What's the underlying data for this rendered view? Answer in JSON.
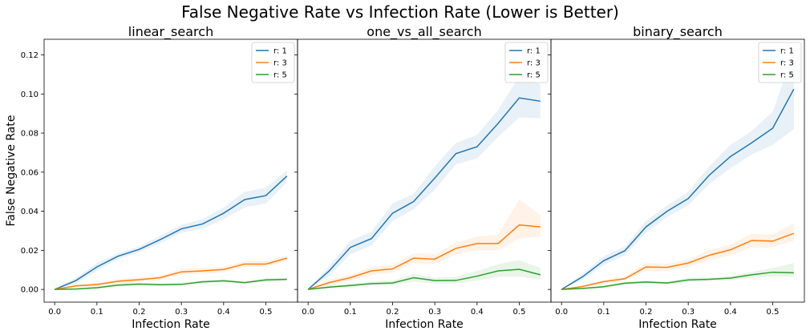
{
  "figure": {
    "title": "False Negative Rate vs Infection Rate (Lower is Better)"
  },
  "chart_data": {
    "type": "line",
    "x": [
      0.0,
      0.05,
      0.1,
      0.15,
      0.2,
      0.25,
      0.3,
      0.35,
      0.4,
      0.45,
      0.5,
      0.55
    ],
    "xlabel": "Infection Rate",
    "ylabel": "False Negative Rate",
    "xlim": [
      -0.025,
      0.575
    ],
    "ylim": [
      -0.0065,
      0.128
    ],
    "xticks": [
      "0.0",
      "0.1",
      "0.2",
      "0.3",
      "0.4",
      "0.5"
    ],
    "yticks": [
      "0.00",
      "0.02",
      "0.04",
      "0.06",
      "0.08",
      "0.10",
      "0.12"
    ],
    "grid": false,
    "legend_placement": "top-right",
    "series_styles": [
      {
        "name": "r: 1",
        "color": "#1f77b4"
      },
      {
        "name": "r: 3",
        "color": "#ff7f0e"
      },
      {
        "name": "r: 5",
        "color": "#2ca02c"
      }
    ],
    "panels": [
      {
        "title": "linear_search",
        "series": [
          {
            "name": "r: 1",
            "values": [
              0.0,
              0.0045,
              0.0115,
              0.017,
              0.0205,
              0.0255,
              0.031,
              0.0335,
              0.039,
              0.046,
              0.048,
              0.058
            ],
            "lower": [
              0.0,
              0.003,
              0.0095,
              0.0155,
              0.019,
              0.0235,
              0.029,
              0.031,
              0.036,
              0.042,
              0.044,
              0.055
            ],
            "upper": [
              0.0,
              0.006,
              0.0135,
              0.0185,
              0.022,
              0.0275,
              0.033,
              0.036,
              0.042,
              0.05,
              0.052,
              0.061
            ]
          },
          {
            "name": "r: 3",
            "values": [
              0.0,
              0.0018,
              0.0025,
              0.0042,
              0.005,
              0.006,
              0.009,
              0.0095,
              0.0102,
              0.013,
              0.013,
              0.016
            ],
            "lower": [
              0.0,
              0.001,
              0.0015,
              0.003,
              0.0038,
              0.0048,
              0.0075,
              0.008,
              0.0088,
              0.0115,
              0.0115,
              0.0145
            ],
            "upper": [
              0.0,
              0.0026,
              0.0035,
              0.0054,
              0.0062,
              0.0072,
              0.0105,
              0.011,
              0.0116,
              0.0145,
              0.0145,
              0.0175
            ]
          },
          {
            "name": "r: 5",
            "values": [
              0.0,
              0.0002,
              0.0009,
              0.0022,
              0.0027,
              0.0024,
              0.0026,
              0.0039,
              0.0044,
              0.0035,
              0.0049,
              0.0052
            ],
            "lower": [
              0.0,
              0.0,
              0.0004,
              0.0015,
              0.002,
              0.0017,
              0.0019,
              0.003,
              0.0036,
              0.0027,
              0.004,
              0.0043
            ],
            "upper": [
              0.0,
              0.0004,
              0.0014,
              0.0029,
              0.0034,
              0.0031,
              0.0033,
              0.0048,
              0.0052,
              0.0043,
              0.0058,
              0.0061
            ]
          }
        ]
      },
      {
        "title": "one_vs_all_search",
        "series": [
          {
            "name": "r: 1",
            "values": [
              0.0,
              0.0095,
              0.0215,
              0.026,
              0.039,
              0.045,
              0.057,
              0.0695,
              0.073,
              0.085,
              0.098,
              0.0963
            ],
            "lower": [
              0.0,
              0.007,
              0.018,
              0.0225,
              0.035,
              0.041,
              0.051,
              0.064,
              0.067,
              0.078,
              0.088,
              0.0875
            ],
            "upper": [
              0.0,
              0.012,
              0.025,
              0.0295,
              0.044,
              0.049,
              0.063,
              0.075,
              0.079,
              0.092,
              0.109,
              0.105
            ]
          },
          {
            "name": "r: 3",
            "values": [
              0.0,
              0.0035,
              0.006,
              0.0095,
              0.0105,
              0.016,
              0.0155,
              0.021,
              0.0235,
              0.0235,
              0.033,
              0.032
            ],
            "lower": [
              0.0,
              0.002,
              0.0045,
              0.0075,
              0.0085,
              0.0135,
              0.013,
              0.018,
              0.02,
              0.02,
              0.026,
              0.027
            ],
            "upper": [
              0.0,
              0.005,
              0.0075,
              0.0115,
              0.0125,
              0.0185,
              0.018,
              0.024,
              0.027,
              0.028,
              0.046,
              0.038
            ]
          },
          {
            "name": "r: 5",
            "values": [
              0.0,
              0.0012,
              0.002,
              0.003,
              0.0033,
              0.006,
              0.0045,
              0.0046,
              0.0068,
              0.0095,
              0.0103,
              0.0075
            ],
            "lower": [
              0.0,
              0.0005,
              0.001,
              0.002,
              0.0022,
              0.004,
              0.003,
              0.003,
              0.0045,
              0.0065,
              0.0065,
              0.005
            ],
            "upper": [
              0.0,
              0.002,
              0.003,
              0.004,
              0.0045,
              0.008,
              0.006,
              0.0065,
              0.0095,
              0.013,
              0.015,
              0.011
            ]
          }
        ]
      },
      {
        "title": "binary_search",
        "series": [
          {
            "name": "r: 1",
            "values": [
              0.0,
              0.0065,
              0.0147,
              0.0198,
              0.032,
              0.04,
              0.0465,
              0.0585,
              0.068,
              0.075,
              0.0825,
              0.1025
            ],
            "lower": [
              0.0,
              0.005,
              0.0125,
              0.0175,
              0.029,
              0.037,
              0.043,
              0.054,
              0.062,
              0.069,
              0.074,
              0.082
            ],
            "upper": [
              0.0,
              0.008,
              0.017,
              0.022,
              0.035,
              0.043,
              0.05,
              0.063,
              0.074,
              0.081,
              0.091,
              0.121
            ]
          },
          {
            "name": "r: 3",
            "values": [
              0.0,
              0.0015,
              0.004,
              0.0055,
              0.0115,
              0.0113,
              0.0135,
              0.0175,
              0.0203,
              0.025,
              0.0247,
              0.0287
            ],
            "lower": [
              0.0,
              0.001,
              0.003,
              0.0045,
              0.0095,
              0.0095,
              0.0115,
              0.015,
              0.0175,
              0.0215,
              0.0215,
              0.025
            ],
            "upper": [
              0.0,
              0.002,
              0.005,
              0.0065,
              0.0135,
              0.0131,
              0.0155,
              0.02,
              0.023,
              0.0285,
              0.028,
              0.034
            ]
          },
          {
            "name": "r: 5",
            "values": [
              0.0,
              0.0005,
              0.0014,
              0.0032,
              0.0038,
              0.0033,
              0.0049,
              0.0052,
              0.0058,
              0.0075,
              0.0088,
              0.0085
            ],
            "lower": [
              0.0,
              0.0002,
              0.0008,
              0.0024,
              0.003,
              0.0025,
              0.0038,
              0.0042,
              0.0046,
              0.006,
              0.0066,
              0.0065
            ],
            "upper": [
              0.0,
              0.0008,
              0.002,
              0.004,
              0.0046,
              0.0041,
              0.006,
              0.0062,
              0.007,
              0.009,
              0.011,
              0.0135
            ]
          }
        ]
      }
    ]
  }
}
